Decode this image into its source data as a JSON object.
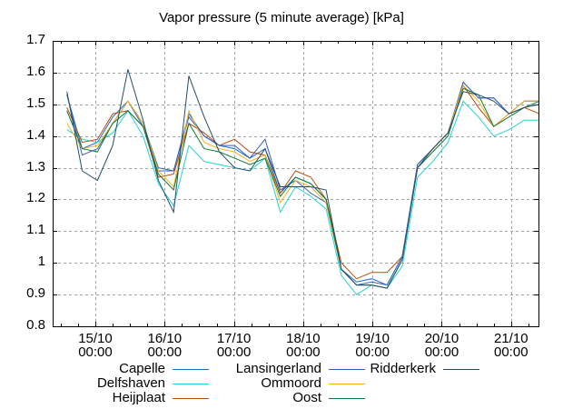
{
  "chart_data": {
    "type": "line",
    "title": "Vapor pressure (5 minute average) [kPa]",
    "xlabel": "",
    "ylabel": "",
    "x_unit": "days since 15/10 00:00",
    "xlim": [
      -0.616,
      6.396
    ],
    "ylim": [
      0.8,
      1.7
    ],
    "grid": true,
    "legend_position": "bottom",
    "yticks": [
      "1.7",
      "1.6",
      "1.5",
      "1.4",
      "1.3",
      "1.2",
      "1.1",
      "1",
      "0.9",
      "0.8"
    ],
    "ytick_values": [
      1.7,
      1.6,
      1.5,
      1.4,
      1.3,
      1.2,
      1.1,
      1.0,
      0.9,
      0.8
    ],
    "xticks": [
      {
        "value": 0,
        "date": "15/10",
        "time": "00:00"
      },
      {
        "value": 1,
        "date": "16/10",
        "time": "00:00"
      },
      {
        "value": 2,
        "date": "17/10",
        "time": "00:00"
      },
      {
        "value": 3,
        "date": "18/10",
        "time": "00:00"
      },
      {
        "value": 4,
        "date": "19/10",
        "time": "00:00"
      },
      {
        "value": 5,
        "date": "20/10",
        "time": "00:00"
      },
      {
        "value": 6,
        "date": "21/10",
        "time": "00:00"
      }
    ],
    "x": [
      -0.41,
      -0.19,
      0.03,
      0.25,
      0.47,
      0.69,
      0.91,
      1.13,
      1.35,
      1.57,
      1.79,
      2.01,
      2.23,
      2.45,
      2.67,
      2.89,
      3.11,
      3.33,
      3.55,
      3.77,
      3.99,
      4.21,
      4.43,
      4.65,
      4.87,
      5.09,
      5.31,
      5.53,
      5.75,
      5.97,
      6.19,
      6.41
    ],
    "series": [
      {
        "name": "Capelle",
        "color": "#1a6fc9",
        "values": [
          1.53,
          1.36,
          1.38,
          1.46,
          1.51,
          1.44,
          1.3,
          1.29,
          1.47,
          1.4,
          1.37,
          1.36,
          1.33,
          1.36,
          1.22,
          1.27,
          1.25,
          1.2,
          0.98,
          0.94,
          0.95,
          0.93,
          1.02,
          1.31,
          1.36,
          1.41,
          1.57,
          1.52,
          1.52,
          1.47,
          1.51,
          1.51
        ]
      },
      {
        "name": "Delfshaven",
        "color": "#22d3d3",
        "values": [
          1.42,
          1.39,
          1.38,
          1.41,
          1.48,
          1.4,
          1.25,
          1.18,
          1.37,
          1.32,
          1.31,
          1.3,
          1.29,
          1.33,
          1.16,
          1.24,
          1.21,
          1.17,
          0.96,
          0.9,
          0.93,
          0.92,
          0.99,
          1.27,
          1.32,
          1.38,
          1.51,
          1.46,
          1.4,
          1.42,
          1.45,
          1.45
        ]
      },
      {
        "name": "Heijplaat",
        "color": "#b94a0e",
        "values": [
          1.49,
          1.38,
          1.39,
          1.47,
          1.48,
          1.43,
          1.27,
          1.28,
          1.44,
          1.41,
          1.37,
          1.39,
          1.35,
          1.34,
          1.22,
          1.29,
          1.27,
          1.2,
          1.0,
          0.95,
          0.97,
          0.97,
          1.02,
          1.3,
          1.36,
          1.41,
          1.56,
          1.49,
          1.43,
          1.47,
          1.49,
          1.47
        ]
      },
      {
        "name": "Lansingerland",
        "color": "#3a5fc2",
        "values": [
          1.53,
          1.34,
          1.36,
          1.44,
          1.51,
          1.43,
          1.29,
          1.29,
          1.46,
          1.4,
          1.37,
          1.37,
          1.33,
          1.39,
          1.23,
          1.26,
          1.22,
          1.19,
          0.98,
          0.93,
          0.94,
          0.93,
          1.02,
          1.31,
          1.36,
          1.41,
          1.57,
          1.52,
          1.52,
          1.47,
          1.51,
          1.51
        ]
      },
      {
        "name": "Ommoord",
        "color": "#f2b31a",
        "values": [
          1.44,
          1.36,
          1.37,
          1.44,
          1.51,
          1.44,
          1.29,
          1.24,
          1.48,
          1.38,
          1.36,
          1.35,
          1.32,
          1.34,
          1.19,
          1.26,
          1.24,
          1.19,
          0.98,
          0.93,
          0.93,
          0.92,
          1.01,
          1.3,
          1.36,
          1.41,
          1.56,
          1.51,
          1.43,
          1.47,
          1.51,
          1.51
        ]
      },
      {
        "name": "Oost",
        "color": "#0d7a3a",
        "values": [
          1.48,
          1.36,
          1.35,
          1.44,
          1.48,
          1.43,
          1.28,
          1.23,
          1.44,
          1.36,
          1.35,
          1.33,
          1.31,
          1.33,
          1.21,
          1.27,
          1.25,
          1.2,
          0.98,
          0.93,
          0.93,
          0.92,
          1.01,
          1.3,
          1.35,
          1.4,
          1.55,
          1.53,
          1.43,
          1.46,
          1.49,
          1.51
        ]
      },
      {
        "name": "Ridderkerk",
        "color": "#234e6b",
        "values": [
          1.54,
          1.29,
          1.26,
          1.37,
          1.61,
          1.45,
          1.26,
          1.16,
          1.59,
          1.46,
          1.35,
          1.3,
          1.29,
          1.36,
          1.24,
          1.24,
          1.24,
          1.23,
          0.98,
          0.93,
          0.93,
          0.92,
          1.01,
          1.3,
          1.36,
          1.41,
          1.54,
          1.53,
          1.51,
          1.47,
          1.49,
          1.5
        ]
      }
    ]
  }
}
